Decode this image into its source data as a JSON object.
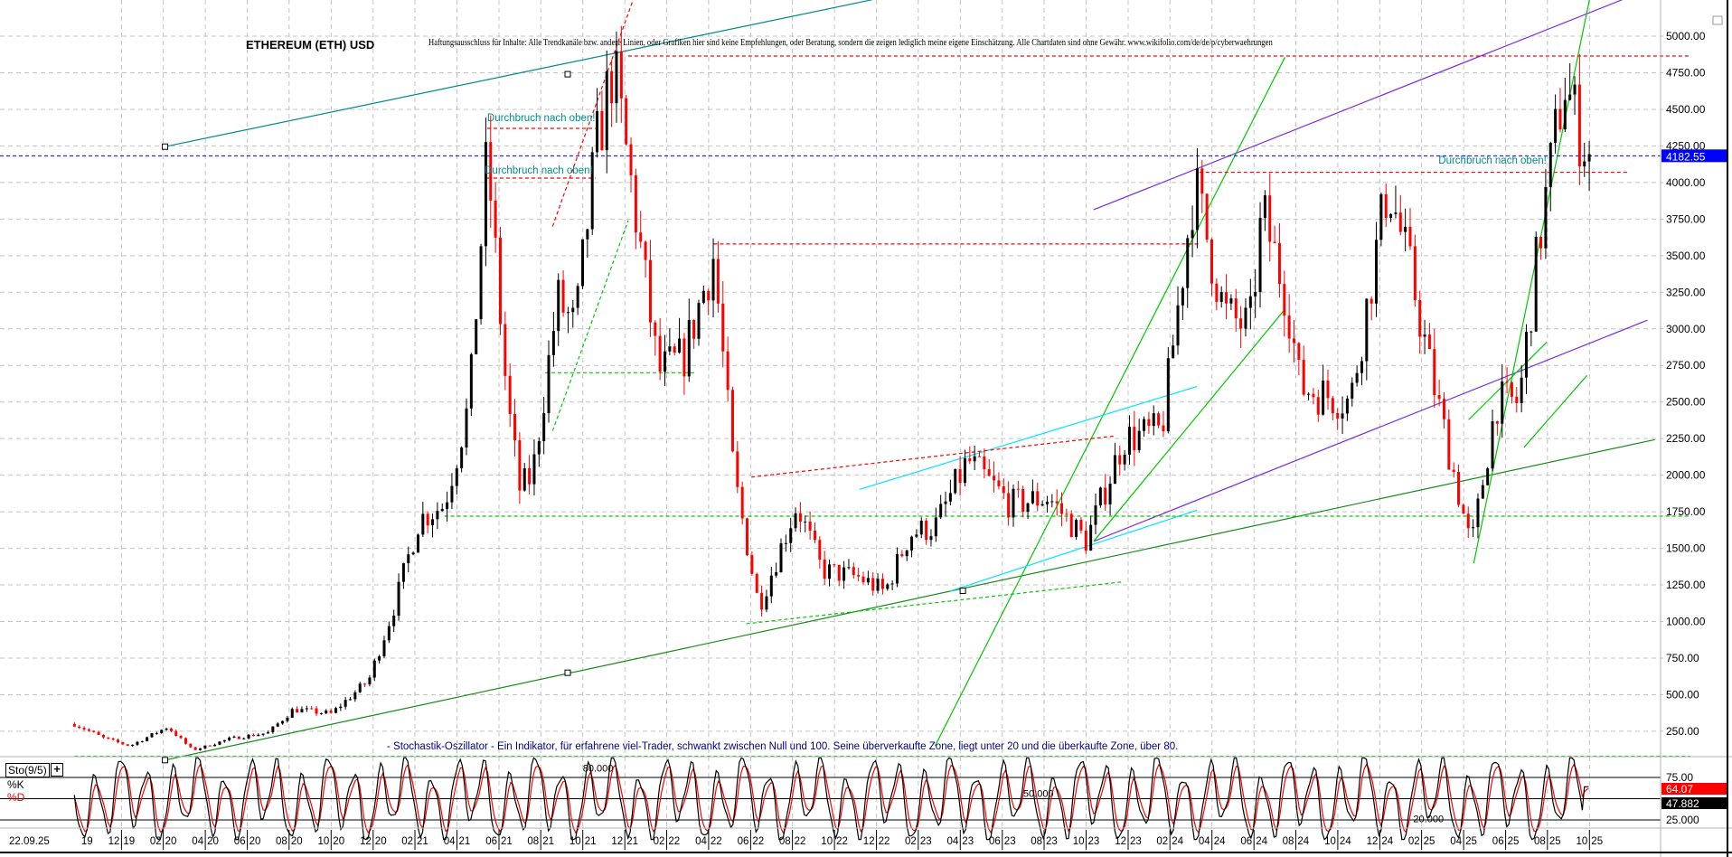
{
  "header": {
    "title": "ETHEREUM (ETH) USD",
    "disclaimer": "Haftungsausschluss für Inhalte: Alle Trendkanäle bzw. andere Linien, oder Grafiken hier sind keine Empfehlungen, oder Beratung, sondern die zeigen lediglich meine eigene Einschätzung. Alle Chartdaten sind ohne Gewähr.  www.wikifolio.com/de/de/p/cyberwaehrungen"
  },
  "indicator": {
    "name": "Sto(9/5)",
    "plus": "+",
    "k_label": "%K",
    "d_label": "%D",
    "note": "- Stochastik-Oszillator - Ein Indikator, für erfahrene viel-Trader, schwankt zwischen Null und 100. Seine überverkaufte Zone, liegt unter 20 und die überkaufte Zone, über 80."
  },
  "colors": {
    "up": "#ff0000",
    "down": "#000000",
    "teal": "#008b8b",
    "purple": "#7b2be2",
    "green": "#00c800",
    "darkgreen": "#1a8a1a",
    "cyan": "#00e5ff",
    "current": "#0000ff"
  },
  "chart_data": {
    "type": "candlestick",
    "title": "ETHEREUM (ETH) USD",
    "ylim": [
      0,
      5250
    ],
    "yticks": [
      250,
      500,
      750,
      1000,
      1250,
      1500,
      1750,
      2000,
      2250,
      2500,
      2750,
      3000,
      3250,
      3500,
      3750,
      4000,
      4250,
      4500,
      4750,
      5000
    ],
    "ytick_labels": [
      "250.00",
      "500.00",
      "750.00",
      "1000.00",
      "1250.00",
      "1500.00",
      "1750.00",
      "2000.00",
      "2250.00",
      "2500.00",
      "2750.00",
      "3000.00",
      "3250.00",
      "3500.00",
      "3750.00",
      "4000.00",
      "4250.00",
      "4500.00",
      "4750.00",
      "5000.00"
    ],
    "current_price": 4182.55,
    "current_price_label": "4182.55",
    "xlim": [
      2019.73,
      2026.15
    ],
    "xlabels": [
      {
        "x": 2019.73,
        "text": "22.09.25"
      },
      {
        "x": 2019.75,
        "m": "",
        "y": "19"
      },
      {
        "x": 2019.917,
        "m": "12",
        "y": "19"
      },
      {
        "x": 2020.083,
        "m": "02",
        "y": "20"
      },
      {
        "x": 2020.25,
        "m": "04",
        "y": "20"
      },
      {
        "x": 2020.417,
        "m": "06",
        "y": "20"
      },
      {
        "x": 2020.583,
        "m": "08",
        "y": "20"
      },
      {
        "x": 2020.75,
        "m": "10",
        "y": "20"
      },
      {
        "x": 2020.917,
        "m": "12",
        "y": "20"
      },
      {
        "x": 2021.083,
        "m": "02",
        "y": "21"
      },
      {
        "x": 2021.25,
        "m": "04",
        "y": "21"
      },
      {
        "x": 2021.417,
        "m": "06",
        "y": "21"
      },
      {
        "x": 2021.583,
        "m": "08",
        "y": "21"
      },
      {
        "x": 2021.75,
        "m": "10",
        "y": "21"
      },
      {
        "x": 2021.917,
        "m": "12",
        "y": "21"
      },
      {
        "x": 2022.083,
        "m": "02",
        "y": "22"
      },
      {
        "x": 2022.25,
        "m": "04",
        "y": "22"
      },
      {
        "x": 2022.417,
        "m": "06",
        "y": "22"
      },
      {
        "x": 2022.583,
        "m": "08",
        "y": "22"
      },
      {
        "x": 2022.75,
        "m": "10",
        "y": "22"
      },
      {
        "x": 2022.917,
        "m": "12",
        "y": "22"
      },
      {
        "x": 2023.083,
        "m": "02",
        "y": "23"
      },
      {
        "x": 2023.25,
        "m": "04",
        "y": "23"
      },
      {
        "x": 2023.417,
        "m": "06",
        "y": "23"
      },
      {
        "x": 2023.583,
        "m": "08",
        "y": "23"
      },
      {
        "x": 2023.75,
        "m": "10",
        "y": "23"
      },
      {
        "x": 2023.917,
        "m": "12",
        "y": "23"
      },
      {
        "x": 2024.083,
        "m": "02",
        "y": "24"
      },
      {
        "x": 2024.25,
        "m": "04",
        "y": "24"
      },
      {
        "x": 2024.417,
        "m": "06",
        "y": "24"
      },
      {
        "x": 2024.583,
        "m": "08",
        "y": "24"
      },
      {
        "x": 2024.75,
        "m": "10",
        "y": "24"
      },
      {
        "x": 2024.917,
        "m": "12",
        "y": "24"
      },
      {
        "x": 2025.083,
        "m": "02",
        "y": "25"
      },
      {
        "x": 2025.25,
        "m": "04",
        "y": "25"
      },
      {
        "x": 2025.417,
        "m": "06",
        "y": "25"
      },
      {
        "x": 2025.583,
        "m": "08",
        "y": "25"
      },
      {
        "x": 2025.75,
        "m": "10",
        "y": "25"
      }
    ],
    "price_keyframes": [
      [
        2019.73,
        300
      ],
      [
        2019.85,
        200
      ],
      [
        2019.95,
        150
      ],
      [
        2020.1,
        280
      ],
      [
        2020.2,
        120
      ],
      [
        2020.35,
        200
      ],
      [
        2020.5,
        240
      ],
      [
        2020.6,
        400
      ],
      [
        2020.75,
        370
      ],
      [
        2020.9,
        600
      ],
      [
        2021.0,
        1100
      ],
      [
        2021.1,
        1700
      ],
      [
        2021.2,
        1800
      ],
      [
        2021.3,
        2500
      ],
      [
        2021.37,
        4200
      ],
      [
        2021.45,
        2500
      ],
      [
        2021.5,
        1900
      ],
      [
        2021.55,
        2000
      ],
      [
        2021.65,
        3200
      ],
      [
        2021.72,
        3000
      ],
      [
        2021.8,
        4200
      ],
      [
        2021.87,
        4800
      ],
      [
        2021.95,
        3900
      ],
      [
        2022.05,
        2700
      ],
      [
        2022.15,
        2800
      ],
      [
        2022.27,
        3500
      ],
      [
        2022.35,
        2000
      ],
      [
        2022.45,
        1100
      ],
      [
        2022.6,
        1800
      ],
      [
        2022.7,
        1350
      ],
      [
        2022.85,
        1300
      ],
      [
        2022.95,
        1200
      ],
      [
        2023.05,
        1600
      ],
      [
        2023.15,
        1650
      ],
      [
        2023.28,
        2100
      ],
      [
        2023.45,
        1800
      ],
      [
        2023.6,
        1850
      ],
      [
        2023.75,
        1550
      ],
      [
        2023.9,
        2250
      ],
      [
        2024.05,
        2300
      ],
      [
        2024.18,
        4000
      ],
      [
        2024.3,
        3100
      ],
      [
        2024.4,
        3000
      ],
      [
        2024.45,
        3800
      ],
      [
        2024.55,
        3200
      ],
      [
        2024.6,
        2600
      ],
      [
        2024.8,
        2500
      ],
      [
        2024.95,
        4000
      ],
      [
        2025.05,
        3300
      ],
      [
        2025.12,
        2700
      ],
      [
        2025.2,
        2100
      ],
      [
        2025.28,
        1500
      ],
      [
        2025.38,
        2500
      ],
      [
        2025.47,
        2500
      ],
      [
        2025.55,
        3600
      ],
      [
        2025.65,
        4700
      ],
      [
        2025.7,
        4400
      ],
      [
        2025.75,
        4182.55
      ]
    ],
    "lines": [
      {
        "name": "teal-trendline",
        "color": "teal",
        "from": [
          2020.09,
          4245
        ],
        "to": [
          2022.9,
          5249
        ],
        "style": "solid"
      },
      {
        "name": "long-support-trendline",
        "color": "darkgreen",
        "from": [
          2020.09,
          53
        ],
        "to": [
          2026.01,
          2243
        ],
        "style": "solid"
      },
      {
        "name": "purple-upper-channel",
        "color": "purple",
        "from": [
          2023.78,
          3814
        ],
        "to": [
          2025.88,
          5249
        ],
        "style": "solid"
      },
      {
        "name": "purple-lower-channel",
        "color": "purple",
        "from": [
          2023.78,
          1548
        ],
        "to": [
          2025.98,
          3059
        ],
        "style": "solid"
      },
      {
        "name": "green-channel-upper",
        "color": "green",
        "from": [
          2023.15,
          151
        ],
        "to": [
          2024.54,
          4856
        ],
        "style": "solid"
      },
      {
        "name": "green-channel-lower",
        "color": "green",
        "from": [
          2023.78,
          1548
        ],
        "to": [
          2024.54,
          3134
        ],
        "style": "solid"
      },
      {
        "name": "cyan-upper-line",
        "color": "cyan",
        "from": [
          2022.85,
          1903
        ],
        "to": [
          2024.19,
          2606
        ],
        "style": "solid"
      },
      {
        "name": "cyan-lower-line",
        "color": "cyan",
        "from": [
          2023.21,
          1208
        ],
        "to": [
          2024.19,
          1760
        ],
        "style": "solid"
      },
      {
        "name": "green-steep-2025",
        "color": "green",
        "from": [
          2025.29,
          1397
        ],
        "to": [
          2025.75,
          5249
        ],
        "style": "solid"
      },
      {
        "name": "green-2025-lower",
        "color": "green",
        "from": [
          2025.49,
          2190
        ],
        "to": [
          2025.74,
          2681
        ],
        "style": "solid"
      },
      {
        "name": "green-2025-left",
        "color": "green",
        "from": [
          2025.27,
          2379
        ],
        "to": [
          2025.58,
          2908
        ],
        "style": "solid"
      },
      {
        "name": "green-dashed-2021",
        "color": "green",
        "from": [
          2021.63,
          2303
        ],
        "to": [
          2021.93,
          3739
        ],
        "style": "dashed"
      },
      {
        "name": "red-ath-level",
        "color": "up",
        "from": [
          2021.93,
          4864
        ],
        "to": [
          2026.15,
          4864
        ],
        "style": "dashed"
      },
      {
        "name": "red-2022-level",
        "color": "up",
        "from": [
          2022.27,
          3580
        ],
        "to": [
          2024.2,
          3580
        ],
        "style": "dashed"
      },
      {
        "name": "green-1720-level",
        "color": "green",
        "from": [
          2021.2,
          1720
        ],
        "to": [
          2026.15,
          1720
        ],
        "style": "dashed"
      },
      {
        "name": "green-2700-level",
        "color": "green",
        "from": [
          2021.6,
          2700
        ],
        "to": [
          2022.2,
          2700
        ],
        "style": "dashed"
      },
      {
        "name": "green-bottom-level",
        "color": "green",
        "from": [
          2019.73,
          80
        ],
        "to": [
          2026.15,
          80
        ],
        "style": "dashed"
      },
      {
        "name": "red-2024-level",
        "color": "up",
        "from": [
          2024.2,
          4070
        ],
        "to": [
          2025.9,
          4070
        ],
        "style": "dashed"
      },
      {
        "name": "red-2021-level",
        "color": "up",
        "from": [
          2021.37,
          4370
        ],
        "to": [
          2021.8,
          4370
        ],
        "style": "dashed"
      },
      {
        "name": "red-2021-level-2",
        "color": "up",
        "from": [
          2021.37,
          4030
        ],
        "to": [
          2021.8,
          4030
        ],
        "style": "dashed"
      },
      {
        "name": "green-dashed-2022-bottom",
        "color": "green",
        "from": [
          2022.4,
          985
        ],
        "to": [
          2023.89,
          1270
        ],
        "style": "dashed"
      },
      {
        "name": "red-dashed-2022-diagonal",
        "color": "up",
        "from": [
          2022.42,
          1987
        ],
        "to": [
          2023.86,
          2267
        ],
        "style": "dashed"
      },
      {
        "name": "red-dashed-2021-diagonal",
        "color": "up",
        "from": [
          2021.63,
          3700
        ],
        "to": [
          2021.95,
          5249
        ],
        "style": "dashed"
      }
    ],
    "annotations": [
      {
        "text": "Durchbruch nach oben!",
        "x": 2021.37,
        "y": 4420
      },
      {
        "text": "Durchbruch nach oben!",
        "x": 2021.36,
        "y": 4060
      },
      {
        "text": "Durchbruch nach oben!",
        "x": 2025.15,
        "y": 4130
      }
    ],
    "stochastic": {
      "params": "9/5",
      "ylim": [
        0,
        100
      ],
      "levels": [
        80,
        50,
        20
      ],
      "level_labels": [
        "80.000",
        "50.000",
        "20.000"
      ],
      "ytick_labels": [
        "75.00",
        "25.000"
      ],
      "k_last": 64.07,
      "k_last_label": "64.07",
      "d_last": 47.882,
      "d_last_label": "47.882"
    }
  }
}
